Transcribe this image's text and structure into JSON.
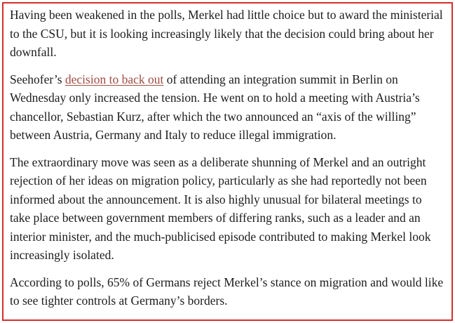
{
  "article": {
    "paragraphs": {
      "p1": "Having been weakened in the polls, Merkel had little choice but to award the ministerial to the CSU, but it is looking increasingly likely that the decision could bring about her downfall.",
      "p2_before": "Seehofer’s ",
      "p2_link": "decision to back out",
      "p2_after": " of attending an integration summit in Berlin on Wednesday only increased the tension. He went on to hold a meeting with Austria’s chancellor, Sebastian Kurz, after which the two announced an “axis of the willing” between Austria, Germany and Italy to reduce illegal immigration.",
      "p3": "The extraordinary move was seen as a deliberate shunning of Merkel and an outright rejection of her ideas on migration policy, particularly as she had reportedly not been informed about the announcement. It is also highly unusual for bilateral meetings to take place between government members of differing ranks, such as a leader and an interior minister, and the much-publicised episode contributed to making Merkel look increasingly isolated.",
      "p4": "According to polls, 65% of Germans reject Merkel’s stance on migration and would like to see tighter controls at Germany’s borders."
    },
    "colors": {
      "frame_border": "#d32f2f",
      "link": "#9e4c40",
      "text": "#1c1c1c",
      "background": "#ffffff"
    }
  }
}
